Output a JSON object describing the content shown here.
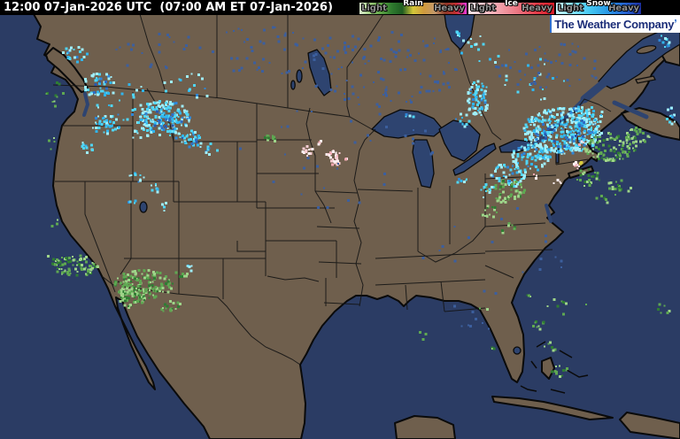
{
  "topbar": {
    "timestamp": "12:00 07-Jan-2026 UTC  (07:00 AM ET 07-Jan-2026)",
    "legend": {
      "light_label": "Light",
      "heavy_label": "Heavy",
      "types": [
        {
          "name": "Rain",
          "stops": [
            "#dcead0",
            "#9fcc7e",
            "#5ea345",
            "#2f7a2e",
            "#1e5c22",
            "#d4c83a",
            "#d09a3c",
            "#c49a6a",
            "#8a3828",
            "#c23030",
            "#e838d8"
          ]
        },
        {
          "name": "Ice",
          "stops": [
            "#fbe3e6",
            "#f6c2c8",
            "#f19aa4",
            "#ea707c",
            "#e23c48",
            "#d81c28"
          ]
        },
        {
          "name": "Snow",
          "stops": [
            "#c8f4fb",
            "#84e2f8",
            "#44c8f2",
            "#2a9ae6",
            "#2666d2",
            "#1c2e9e"
          ]
        }
      ]
    }
  },
  "logo": {
    "text": "The Weather Company",
    "mark": "’",
    "text_color": "#1b2d78",
    "mark_color": "#2f6fd0"
  },
  "map": {
    "colors": {
      "ocean": "#2b3c64",
      "land": "#6f5f4d",
      "lake": "#2e4470",
      "coast_line": "#0a0a0a",
      "border_line": "#141414"
    },
    "radar": {
      "palettes": {
        "snow": [
          "#9feefb",
          "#4fd6f7",
          "#30b6ee",
          "#2f86d6"
        ],
        "mix": [
          "#2f6fc4",
          "#2a58b0"
        ],
        "rain": [
          "#9ed489",
          "#5fa852",
          "#2f7d33"
        ],
        "hrain": [
          "#d8cc3e"
        ],
        "ice": [
          "#fdeef0",
          "#f8cdd4",
          "#f3a8b2"
        ],
        "speck": [
          "#3c5f9e"
        ]
      },
      "clusters": [
        [
          "snow",
          85,
          61,
          14,
          10,
          0.25
        ],
        [
          "snow",
          112,
          96,
          20,
          14,
          0.3
        ],
        [
          "snow",
          120,
          141,
          16,
          12,
          0.35
        ],
        [
          "snow",
          100,
          166,
          10,
          8,
          0.2
        ],
        [
          "snow",
          185,
          134,
          30,
          20,
          0.55
        ],
        [
          "snow",
          215,
          156,
          16,
          10,
          0.35
        ],
        [
          "snow",
          158,
          151,
          10,
          8,
          0.25
        ],
        [
          "snow",
          240,
          168,
          14,
          7,
          0.15
        ],
        [
          "snow",
          155,
          201,
          10,
          7,
          0.2
        ],
        [
          "snow",
          178,
          212,
          9,
          6,
          0.2
        ],
        [
          "snow",
          150,
          231,
          7,
          5,
          0.15
        ],
        [
          "snow",
          188,
          234,
          8,
          5,
          0.12
        ],
        [
          "snow",
          214,
          303,
          4,
          4,
          0.5
        ],
        [
          "snow",
          150,
          120,
          40,
          25,
          0.05
        ],
        [
          "snow",
          210,
          100,
          30,
          18,
          0.05
        ],
        [
          "snow",
          540,
          111,
          13,
          20,
          0.5
        ],
        [
          "snow",
          522,
          136,
          8,
          8,
          0.25
        ],
        [
          "snow",
          540,
          60,
          30,
          20,
          0.04
        ],
        [
          "snow",
          635,
          148,
          45,
          26,
          0.6
        ],
        [
          "snow",
          600,
          178,
          22,
          16,
          0.45
        ],
        [
          "snow",
          660,
          131,
          22,
          12,
          0.35
        ],
        [
          "snow",
          575,
          198,
          20,
          14,
          0.35
        ],
        [
          "snow",
          552,
          216,
          12,
          8,
          0.2
        ],
        [
          "snow",
          522,
          206,
          8,
          6,
          0.2
        ],
        [
          "snow",
          512,
          38,
          8,
          6,
          0.2
        ],
        [
          "snow",
          748,
          46,
          10,
          8,
          0.2
        ],
        [
          "snow",
          758,
          131,
          8,
          10,
          0.25
        ],
        [
          "snow",
          460,
          131,
          10,
          4,
          0.12
        ],
        [
          "snow",
          600,
          90,
          40,
          25,
          0.03
        ],
        [
          "mix",
          188,
          136,
          18,
          12,
          0.12
        ],
        [
          "mix",
          112,
          98,
          10,
          8,
          0.1
        ],
        [
          "mix",
          635,
          148,
          30,
          18,
          0.07
        ],
        [
          "mix",
          215,
          158,
          10,
          6,
          0.1
        ],
        [
          "rain",
          85,
          300,
          26,
          12,
          0.45
        ],
        [
          "rain",
          60,
          294,
          12,
          6,
          0.15
        ],
        [
          "rain",
          162,
          321,
          34,
          16,
          0.5
        ],
        [
          "rain",
          148,
          336,
          16,
          12,
          0.6
        ],
        [
          "rain",
          192,
          346,
          12,
          8,
          0.3
        ],
        [
          "rain",
          205,
          311,
          10,
          5,
          0.2
        ],
        [
          "rain",
          62,
          106,
          10,
          14,
          0.12
        ],
        [
          "rain",
          58,
          161,
          7,
          8,
          0.1
        ],
        [
          "rain",
          60,
          251,
          6,
          5,
          0.12
        ],
        [
          "rain",
          570,
          216,
          24,
          13,
          0.3
        ],
        [
          "rain",
          555,
          238,
          14,
          9,
          0.2
        ],
        [
          "rain",
          572,
          259,
          10,
          7,
          0.15
        ],
        [
          "rain",
          690,
          166,
          30,
          16,
          0.4
        ],
        [
          "rain",
          722,
          152,
          14,
          9,
          0.3
        ],
        [
          "rain",
          662,
          201,
          16,
          10,
          0.25
        ],
        [
          "rain",
          700,
          212,
          14,
          10,
          0.2
        ],
        [
          "rain",
          610,
          368,
          8,
          6,
          0.25
        ],
        [
          "rain",
          622,
          391,
          7,
          6,
          0.2
        ],
        [
          "rain",
          633,
          420,
          10,
          7,
          0.25
        ],
        [
          "rain",
          600,
          334,
          5,
          4,
          0.2
        ],
        [
          "rain",
          560,
          394,
          5,
          4,
          0.15
        ],
        [
          "rain",
          305,
          157,
          8,
          4,
          0.7
        ],
        [
          "rain",
          680,
          226,
          10,
          6,
          0.12
        ],
        [
          "rain",
          480,
          378,
          12,
          6,
          0.06
        ],
        [
          "rain",
          545,
          350,
          8,
          4,
          0.08
        ],
        [
          "rain",
          640,
          345,
          22,
          12,
          0.05
        ],
        [
          "rain",
          752,
          348,
          10,
          8,
          0.12
        ],
        [
          "hrain",
          657,
          184,
          3,
          2,
          0.9
        ],
        [
          "ice",
          348,
          171,
          7,
          6,
          0.5
        ],
        [
          "ice",
          377,
          178,
          9,
          9,
          0.6
        ],
        [
          "ice",
          362,
          163,
          5,
          4,
          0.3
        ],
        [
          "ice",
          390,
          183,
          5,
          4,
          0.25
        ],
        [
          "ice",
          648,
          188,
          8,
          5,
          0.25
        ],
        [
          "ice",
          628,
          206,
          6,
          4,
          0.2
        ],
        [
          "ice",
          604,
          200,
          5,
          3,
          0.2
        ],
        [
          "ice",
          655,
          161,
          5,
          3,
          0.2
        ],
        [
          "speck",
          430,
          76,
          90,
          45,
          0.05
        ],
        [
          "speck",
          620,
          76,
          60,
          30,
          0.05
        ],
        [
          "speck",
          300,
          56,
          60,
          30,
          0.04
        ],
        [
          "speck",
          180,
          60,
          50,
          25,
          0.03
        ],
        [
          "speck",
          380,
          180,
          120,
          60,
          0.008
        ],
        [
          "speck",
          550,
          300,
          100,
          80,
          0.006
        ]
      ]
    }
  }
}
